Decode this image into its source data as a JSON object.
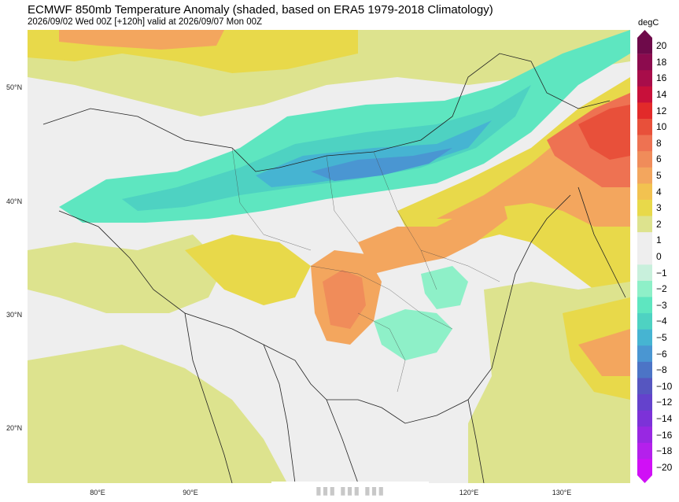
{
  "header": {
    "title": "ECMWF 850mb Temperature Anomaly (shaded, based on ERA5 1979-2018 Climatology)",
    "subtitle": "2026/09/02 Wed 00Z [+120h] valid at 2026/09/07 Mon 00Z"
  },
  "map": {
    "lat_labels": [
      "50°N",
      "40°N",
      "30°N",
      "20°N"
    ],
    "lon_labels": [
      "80°E",
      "90°E",
      "120°E",
      "130°E"
    ],
    "watermark": "▮▮▮ ▮▮▮ ▮▮▮"
  },
  "colorbar": {
    "unit": "degC",
    "ticks": [
      "20",
      "18",
      "16",
      "14",
      "12",
      "10",
      "8",
      "6",
      "5",
      "4",
      "3",
      "2",
      "1",
      "0",
      "−1",
      "−2",
      "−3",
      "−4",
      "−5",
      "−6",
      "−8",
      "−10",
      "−12",
      "−14",
      "−16",
      "−18",
      "−20"
    ],
    "colors": [
      "#6e0a4a",
      "#8c0b4e",
      "#a80d4a",
      "#c8103a",
      "#e22a2a",
      "#e8503a",
      "#ee7252",
      "#f08c5a",
      "#f3a65e",
      "#f2c250",
      "#e8d94a",
      "#dde38e",
      "#eeeeee",
      "#eeeeee",
      "#c8f0dc",
      "#8ef0c8",
      "#5ee6c0",
      "#4ed2c2",
      "#46b4d2",
      "#4a96d2",
      "#4c74c6",
      "#5656c0",
      "#6442cc",
      "#7c32d8",
      "#9828e2",
      "#b420ec",
      "#d010f6"
    ]
  }
}
